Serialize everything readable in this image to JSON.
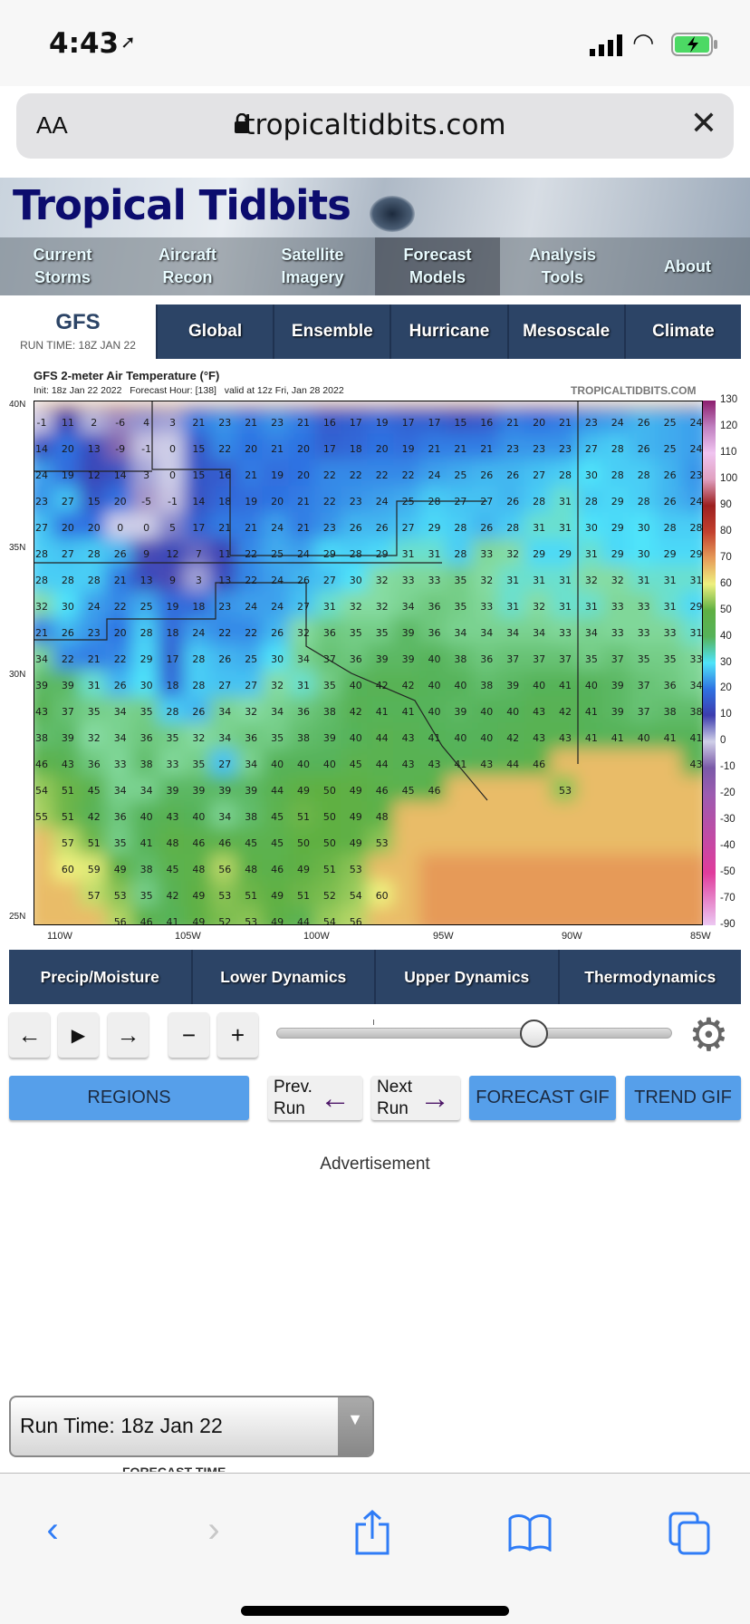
{
  "status_bar": {
    "time": "4:43",
    "icons": [
      "location-arrow-icon",
      "signal-icon",
      "wifi-icon",
      "battery-charging-icon"
    ]
  },
  "browser": {
    "text_size_label": "AA",
    "url": "tropicaltidbits.com"
  },
  "site": {
    "logo": "Tropical Tidbits",
    "nav": [
      {
        "label": "Current\nStorms"
      },
      {
        "label": "Aircraft\nRecon"
      },
      {
        "label": "Satellite\nImagery"
      },
      {
        "label": "Forecast\nModels",
        "active": true
      },
      {
        "label": "Analysis\nTools"
      },
      {
        "label": "About"
      }
    ]
  },
  "model": {
    "name": "GFS",
    "run_time": "RUN TIME: 18Z JAN 22"
  },
  "model_tabs": [
    "Global",
    "Ensemble",
    "Hurricane",
    "Mesoscale",
    "Climate"
  ],
  "map": {
    "title": "GFS 2-meter Air Temperature (°F)",
    "init": "Init: 18z Jan 22 2022",
    "forecast_hour": "Forecast Hour: [138]",
    "valid": "valid at 12z Fri, Jan 28 2022",
    "watermark": "TROPICALTIDBITS.COM"
  },
  "chart_data": {
    "type": "heatmap",
    "units": "°F",
    "lat_labels": [
      "40N",
      "35N",
      "30N",
      "25N"
    ],
    "lon_labels": [
      "110W",
      "105W",
      "100W",
      "95W",
      "90W",
      "85W"
    ],
    "colorbar_ticks": [
      "130",
      "120",
      "110",
      "100",
      "90",
      "80",
      "70",
      "60",
      "50",
      "40",
      "30",
      "20",
      "10",
      "0",
      "-10",
      "-20",
      "-30",
      "-40",
      "-50",
      "-70",
      "-90"
    ],
    "grid": [
      [
        -1,
        11,
        2,
        -6,
        4,
        3,
        21,
        23,
        21,
        23,
        21,
        16,
        17,
        19,
        17,
        17,
        15,
        16,
        21,
        20,
        21,
        23,
        24,
        26,
        25,
        24
      ],
      [
        14,
        20,
        13,
        -9,
        -1,
        0,
        15,
        22,
        20,
        21,
        20,
        17,
        18,
        20,
        19,
        21,
        21,
        21,
        23,
        23,
        23,
        27,
        28,
        26,
        25,
        24
      ],
      [
        24,
        19,
        12,
        14,
        3,
        0,
        15,
        16,
        21,
        19,
        20,
        22,
        22,
        22,
        22,
        24,
        25,
        26,
        26,
        27,
        28,
        30,
        28,
        28,
        26,
        23
      ],
      [
        23,
        27,
        15,
        20,
        -5,
        -1,
        14,
        18,
        19,
        20,
        21,
        22,
        23,
        24,
        25,
        28,
        27,
        27,
        26,
        28,
        31,
        28,
        29,
        28,
        26,
        24
      ],
      [
        27,
        20,
        20,
        0,
        0,
        5,
        17,
        21,
        21,
        24,
        21,
        23,
        26,
        26,
        27,
        29,
        28,
        26,
        28,
        31,
        31,
        30,
        29,
        30,
        28,
        28
      ],
      [
        28,
        27,
        28,
        26,
        9,
        12,
        7,
        11,
        22,
        25,
        24,
        29,
        28,
        29,
        31,
        31,
        28,
        33,
        32,
        29,
        29,
        31,
        29,
        30,
        29,
        29
      ],
      [
        28,
        28,
        28,
        21,
        13,
        9,
        3,
        13,
        22,
        24,
        26,
        27,
        30,
        32,
        33,
        33,
        35,
        32,
        31,
        31,
        31,
        32,
        32,
        31,
        31,
        31
      ],
      [
        32,
        30,
        24,
        22,
        25,
        19,
        18,
        23,
        24,
        24,
        27,
        31,
        32,
        32,
        34,
        36,
        35,
        33,
        31,
        32,
        31,
        31,
        33,
        33,
        31,
        29
      ],
      [
        21,
        26,
        23,
        20,
        28,
        18,
        24,
        22,
        22,
        26,
        32,
        36,
        35,
        35,
        39,
        36,
        34,
        34,
        34,
        34,
        33,
        34,
        33,
        33,
        33,
        31
      ],
      [
        34,
        22,
        21,
        22,
        29,
        17,
        28,
        26,
        25,
        30,
        34,
        37,
        36,
        39,
        39,
        40,
        38,
        36,
        37,
        37,
        37,
        35,
        37,
        35,
        35,
        33
      ],
      [
        39,
        39,
        31,
        26,
        30,
        18,
        28,
        27,
        27,
        32,
        31,
        35,
        40,
        42,
        42,
        40,
        40,
        38,
        39,
        40,
        41,
        40,
        39,
        37,
        36,
        34
      ],
      [
        43,
        37,
        35,
        34,
        35,
        28,
        26,
        34,
        32,
        34,
        36,
        38,
        42,
        41,
        41,
        40,
        39,
        40,
        40,
        43,
        42,
        41,
        39,
        37,
        38,
        38
      ],
      [
        38,
        39,
        32,
        34,
        36,
        35,
        32,
        34,
        36,
        35,
        38,
        39,
        40,
        44,
        43,
        41,
        40,
        40,
        42,
        43,
        43,
        41,
        41,
        40,
        41,
        41
      ],
      [
        46,
        43,
        36,
        33,
        38,
        33,
        35,
        27,
        34,
        40,
        40,
        40,
        45,
        44,
        43,
        43,
        41,
        43,
        44,
        46,
        null,
        null,
        null,
        null,
        null,
        43
      ],
      [
        54,
        51,
        45,
        34,
        34,
        39,
        39,
        39,
        39,
        44,
        49,
        50,
        49,
        46,
        45,
        46,
        null,
        null,
        null,
        null,
        53,
        null,
        null,
        null,
        null,
        null
      ],
      [
        55,
        51,
        42,
        36,
        40,
        43,
        40,
        34,
        38,
        45,
        51,
        50,
        49,
        48,
        null,
        null,
        null,
        null,
        null,
        null,
        null,
        null,
        null,
        null,
        null,
        null
      ],
      [
        null,
        57,
        51,
        35,
        41,
        48,
        46,
        46,
        45,
        45,
        50,
        50,
        49,
        53,
        null,
        null,
        null,
        null,
        null,
        null,
        null,
        null,
        null,
        null,
        null,
        null
      ],
      [
        null,
        60,
        59,
        49,
        38,
        45,
        48,
        56,
        48,
        46,
        49,
        51,
        53,
        null,
        null,
        null,
        null,
        null,
        null,
        null,
        null,
        null,
        null,
        null,
        null,
        null
      ],
      [
        null,
        null,
        57,
        53,
        35,
        42,
        49,
        53,
        51,
        49,
        51,
        52,
        54,
        60,
        null,
        null,
        null,
        null,
        null,
        null,
        null,
        null,
        null,
        null,
        null,
        null
      ],
      [
        null,
        null,
        null,
        56,
        46,
        41,
        49,
        52,
        53,
        49,
        44,
        54,
        56,
        null,
        null,
        null,
        null,
        null,
        null,
        null,
        null,
        null,
        null,
        null,
        null,
        null
      ]
    ]
  },
  "category_tabs": [
    "Precip/Moisture",
    "Lower Dynamics",
    "Upper Dynamics",
    "Thermodynamics"
  ],
  "controls": {
    "prev": "←",
    "play": "▶",
    "next": "→",
    "minus": "−",
    "plus": "+",
    "slider_value": 0.65,
    "settings_icon": "gear-icon"
  },
  "buttons": {
    "regions": "REGIONS",
    "prev_run": "Prev.\nRun",
    "next_run": "Next\nRun",
    "forecast_gif": "FORECAST GIF",
    "trend_gif": "TREND GIF"
  },
  "advertisement": "Advertisement",
  "run_select": {
    "value": "Run Time: 18z Jan 22"
  },
  "forecast_time_label": "FORECAST TIME",
  "colors": {
    "tab_bg": "#2c4466",
    "button_blue": "#569fea",
    "ios_blue": "#2f7cf6",
    "arrow_purple": "#4b1466"
  }
}
